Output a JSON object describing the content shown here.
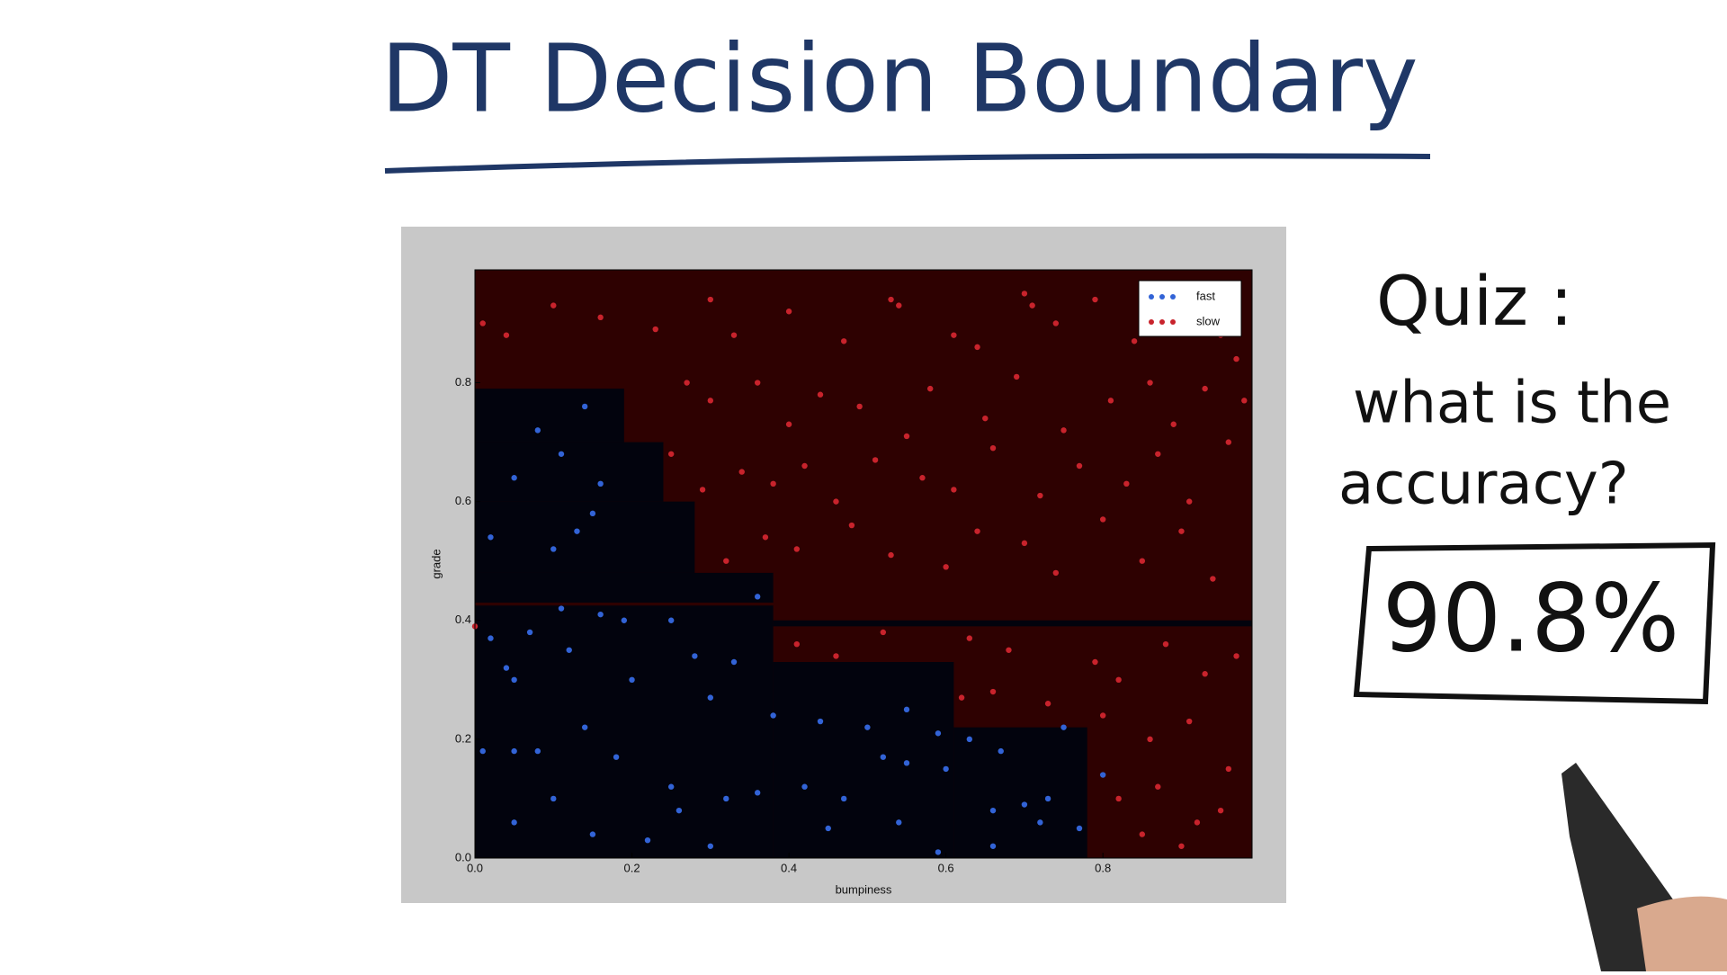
{
  "header": {
    "title": "DT Decision Boundary"
  },
  "quiz": {
    "lines": [
      "Quiz :",
      "what is the",
      "accuracy?"
    ],
    "answer": "90.8%"
  },
  "chart_data": {
    "type": "scatter",
    "xlabel": "bumpiness",
    "ylabel": "grade",
    "xlim": [
      0,
      0.99
    ],
    "ylim": [
      0,
      0.99
    ],
    "xticks": [
      {
        "value": 0,
        "label": "0.0"
      },
      0.2,
      0.4,
      0.6,
      0.8
    ],
    "yticks": [
      {
        "value": 0,
        "label": "0.0"
      },
      0.2,
      0.4,
      0.6,
      0.8
    ],
    "legend": "upper right",
    "background_color": "#2e0101",
    "region_color": "#02030d",
    "regions": [
      {
        "x": [
          0,
          0.38
        ],
        "y": [
          0,
          0.425
        ]
      },
      {
        "x": [
          0,
          0.38
        ],
        "y": [
          0.43,
          0.48
        ]
      },
      {
        "x": [
          0,
          0.28
        ],
        "y": [
          0.48,
          0.6
        ]
      },
      {
        "x": [
          0,
          0.24
        ],
        "y": [
          0.6,
          0.7
        ]
      },
      {
        "x": [
          0,
          0.19
        ],
        "y": [
          0.7,
          0.79
        ]
      },
      {
        "x": [
          0.38,
          0.61
        ],
        "y": [
          0,
          0.33
        ]
      },
      {
        "x": [
          0.61,
          0.78
        ],
        "y": [
          0,
          0.22
        ]
      },
      {
        "x": [
          0.38,
          0.99
        ],
        "y": [
          0.39,
          0.4
        ]
      }
    ],
    "series": [
      {
        "name": "fast",
        "color": "#3263d6",
        "x": [
          0.14,
          0.08,
          0.11,
          0.05,
          0.16,
          0.02,
          0.1,
          0.15,
          0.13,
          0.11,
          0.16,
          0.07,
          0.02,
          0.19,
          0.25,
          0.28,
          0.33,
          0.05,
          0.12,
          0.2,
          0.3,
          0.38,
          0.44,
          0.5,
          0.55,
          0.59,
          0.63,
          0.67,
          0.75,
          0.8,
          0.01,
          0.05,
          0.08,
          0.14,
          0.18,
          0.25,
          0.32,
          0.36,
          0.42,
          0.47,
          0.52,
          0.55,
          0.6,
          0.66,
          0.7,
          0.73,
          0.72,
          0.05,
          0.1,
          0.15,
          0.22,
          0.26,
          0.3,
          0.45,
          0.54,
          0.59,
          0.66,
          0.77,
          0.04,
          0.36
        ],
        "y": [
          0.76,
          0.72,
          0.68,
          0.64,
          0.63,
          0.54,
          0.52,
          0.58,
          0.55,
          0.42,
          0.41,
          0.38,
          0.37,
          0.4,
          0.4,
          0.34,
          0.33,
          0.3,
          0.35,
          0.3,
          0.27,
          0.24,
          0.23,
          0.22,
          0.25,
          0.21,
          0.2,
          0.18,
          0.22,
          0.14,
          0.18,
          0.18,
          0.18,
          0.22,
          0.17,
          0.12,
          0.1,
          0.11,
          0.12,
          0.1,
          0.17,
          0.16,
          0.15,
          0.08,
          0.09,
          0.1,
          0.06,
          0.06,
          0.1,
          0.04,
          0.03,
          0.08,
          0.02,
          0.05,
          0.06,
          0.01,
          0.02,
          0.05,
          0.32,
          0.44
        ]
      },
      {
        "name": "slow",
        "color": "#c8232c",
        "x": [
          0.01,
          0.04,
          0.1,
          0.16,
          0.23,
          0.3,
          0.33,
          0.4,
          0.47,
          0.53,
          0.54,
          0.61,
          0.64,
          0.7,
          0.71,
          0.74,
          0.79,
          0.84,
          0.88,
          0.92,
          0.95,
          0.97,
          0.98,
          0.27,
          0.3,
          0.36,
          0.4,
          0.44,
          0.49,
          0.55,
          0.58,
          0.65,
          0.69,
          0.75,
          0.81,
          0.86,
          0.89,
          0.93,
          0.25,
          0.29,
          0.34,
          0.38,
          0.42,
          0.46,
          0.51,
          0.57,
          0.61,
          0.66,
          0.72,
          0.77,
          0.83,
          0.87,
          0.91,
          0.96,
          0.32,
          0.37,
          0.41,
          0.48,
          0.53,
          0.6,
          0.64,
          0.7,
          0.74,
          0.8,
          0.85,
          0.9,
          0.94,
          0.41,
          0.46,
          0.52,
          0.63,
          0.68,
          0.79,
          0.82,
          0.88,
          0.93,
          0.97,
          0.62,
          0.66,
          0.73,
          0.8,
          0.86,
          0.91,
          0.96,
          0.82,
          0.87,
          0.92,
          0.95,
          0.9,
          0.85,
          0.0
        ],
        "y": [
          0.9,
          0.88,
          0.93,
          0.91,
          0.89,
          0.94,
          0.88,
          0.92,
          0.87,
          0.94,
          0.93,
          0.88,
          0.86,
          0.95,
          0.93,
          0.9,
          0.94,
          0.87,
          0.92,
          0.89,
          0.88,
          0.84,
          0.77,
          0.8,
          0.77,
          0.8,
          0.73,
          0.78,
          0.76,
          0.71,
          0.79,
          0.74,
          0.81,
          0.72,
          0.77,
          0.8,
          0.73,
          0.79,
          0.68,
          0.62,
          0.65,
          0.63,
          0.66,
          0.6,
          0.67,
          0.64,
          0.62,
          0.69,
          0.61,
          0.66,
          0.63,
          0.68,
          0.6,
          0.7,
          0.5,
          0.54,
          0.52,
          0.56,
          0.51,
          0.49,
          0.55,
          0.53,
          0.48,
          0.57,
          0.5,
          0.55,
          0.47,
          0.36,
          0.34,
          0.38,
          0.37,
          0.35,
          0.33,
          0.3,
          0.36,
          0.31,
          0.34,
          0.27,
          0.28,
          0.26,
          0.24,
          0.2,
          0.23,
          0.15,
          0.1,
          0.12,
          0.06,
          0.08,
          0.02,
          0.04,
          0.39
        ]
      }
    ]
  }
}
